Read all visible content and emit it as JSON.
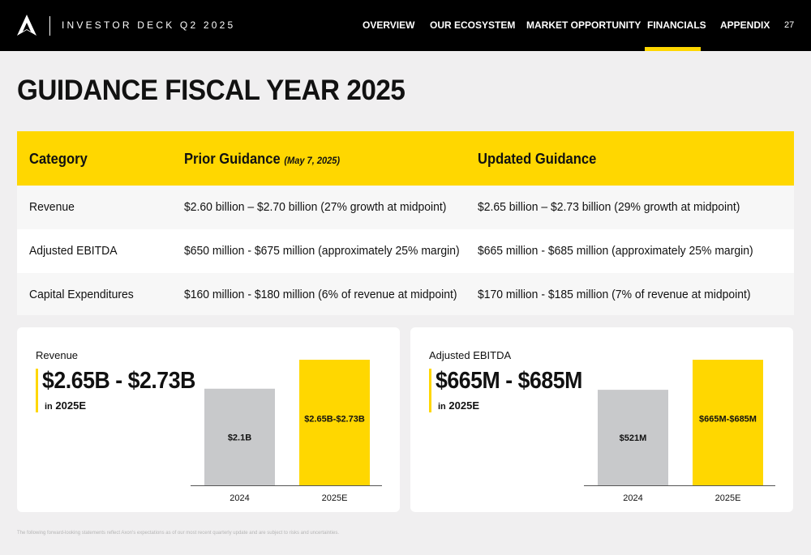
{
  "header": {
    "deck_title": "INVESTOR DECK Q2 2025",
    "nav": [
      {
        "label": "OVERVIEW"
      },
      {
        "label": "OUR ECOSYSTEM"
      },
      {
        "label": "MARKET OPPORTUNITY"
      },
      {
        "label": "FINANCIALS"
      },
      {
        "label": "APPENDIX"
      }
    ],
    "active_nav": "FINANCIALS",
    "page_number": "27"
  },
  "title": "GUIDANCE FISCAL YEAR 2025",
  "table": {
    "headers": {
      "category": "Category",
      "prior": "Prior Guidance",
      "prior_note": "(May 7, 2025)",
      "updated": "Updated Guidance"
    },
    "rows": [
      {
        "category": "Revenue",
        "prior": "$2.60 billion – $2.70 billion (27% growth at midpoint)",
        "updated": "$2.65 billion – $2.73 billion (29% growth at midpoint)"
      },
      {
        "category": "Adjusted EBITDA",
        "prior": "$650 million - $675 million (approximately 25% margin)",
        "updated": "$665 million - $685 million (approximately 25% margin)"
      },
      {
        "category": "Capital Expenditures",
        "prior": "$160 million - $180 million (6% of revenue at midpoint)",
        "updated": "$170 million - $185 million (7% of revenue at midpoint)"
      }
    ]
  },
  "cards": [
    {
      "label": "Revenue",
      "range": "$2.65B  - $2.73B",
      "sub_prefix": "in",
      "sub_year": "2025E"
    },
    {
      "label": "Adjusted EBITDA",
      "range": "$665M  - $685M",
      "sub_prefix": "in",
      "sub_year": "2025E"
    }
  ],
  "chart_data": [
    {
      "type": "bar",
      "categories": [
        "2024",
        "2025E"
      ],
      "values": [
        2.1,
        2.73
      ],
      "range_low": [
        null,
        2.65
      ],
      "data_labels": [
        "$2.1B",
        "$2.65B-$2.73B"
      ],
      "bar_colors": [
        "#c8c9cb",
        "#ffd700"
      ],
      "ylim": [
        0,
        2.73
      ]
    },
    {
      "type": "bar",
      "categories": [
        "2024",
        "2025E"
      ],
      "values": [
        521,
        685
      ],
      "range_low": [
        null,
        665
      ],
      "data_labels": [
        "$521M",
        "$665M-$685M"
      ],
      "bar_colors": [
        "#c8c9cb",
        "#ffd700"
      ],
      "ylim": [
        0,
        685
      ]
    }
  ],
  "footer_note": "The following forward-looking statements reflect Axon's expectations as of our most recent quarterly update and are subject to risks and uncertainties.",
  "colors": {
    "accent": "#ffd700",
    "header_bg": "#000000",
    "page_bg": "#f0eff0",
    "bar_gray": "#c8c9cb"
  },
  "icons": {
    "logo": "axon-delta-logo"
  }
}
